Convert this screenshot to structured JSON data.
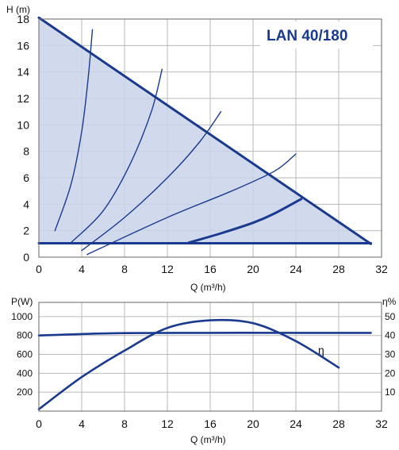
{
  "chart_data": [
    {
      "type": "line",
      "title": "LAN 40/180",
      "xlabel": "Q (m³/h)",
      "ylabel": "H (m)",
      "xlim": [
        0,
        32
      ],
      "ylim": [
        0,
        18
      ],
      "x_ticks": [
        "0",
        "4",
        "8",
        "12",
        "16",
        "20",
        "24",
        "28",
        "32"
      ],
      "y_ticks": [
        "0",
        "2",
        "4",
        "6",
        "8",
        "10",
        "12",
        "14",
        "16",
        "18"
      ],
      "grid": true,
      "colors": {
        "line": "#1a3a8f",
        "area": "#c9d3ea",
        "grid": "#b9b9b9",
        "title": "#1a3a8f"
      },
      "series": [
        {
          "role": "max-curve",
          "points": [
            [
              0,
              18.1
            ],
            [
              31,
              1.0
            ]
          ]
        },
        {
          "role": "min-line",
          "points": [
            [
              0,
              1.05
            ],
            [
              31,
              1.05
            ]
          ]
        },
        {
          "role": "operating-curve",
          "points": [
            [
              14,
              1.1
            ],
            [
              17,
              1.8
            ],
            [
              20,
              2.6
            ],
            [
              22,
              3.3
            ],
            [
              24.5,
              4.4
            ]
          ]
        },
        {
          "role": "system-curve",
          "points": [
            [
              1.5,
              2
            ],
            [
              3,
              5.5
            ],
            [
              4,
              9.5
            ],
            [
              4.6,
              13.5
            ],
            [
              5,
              17.2
            ]
          ]
        },
        {
          "role": "system-curve",
          "points": [
            [
              3,
              1.1
            ],
            [
              6,
              3.5
            ],
            [
              8.5,
              7
            ],
            [
              10.5,
              11
            ],
            [
              11.5,
              14.2
            ]
          ]
        },
        {
          "role": "system-curve",
          "points": [
            [
              4,
              0.5
            ],
            [
              8,
              3
            ],
            [
              12,
              6
            ],
            [
              15,
              8.7
            ],
            [
              17,
              11
            ]
          ]
        },
        {
          "role": "system-curve",
          "points": [
            [
              4.5,
              0.2
            ],
            [
              12,
              3
            ],
            [
              18,
              5
            ],
            [
              22,
              6.5
            ],
            [
              24,
              7.8
            ]
          ]
        }
      ]
    },
    {
      "type": "line",
      "title": "",
      "xlabel": "Q (m³/h)",
      "ylabel": "P(W)",
      "y2label": "η%",
      "xlim": [
        0,
        32
      ],
      "ylim": [
        0,
        1150
      ],
      "y2lim": [
        0,
        57.5
      ],
      "x_ticks": [
        "0",
        "4",
        "8",
        "12",
        "16",
        "20",
        "24",
        "28",
        "32"
      ],
      "y_ticks": [
        "200",
        "400",
        "600",
        "800",
        "1000"
      ],
      "y2_ticks": [
        "10",
        "20",
        "30",
        "40",
        "50"
      ],
      "grid": true,
      "colors": {
        "line": "#1a3a8f",
        "grid": "#b9b9b9"
      },
      "series": [
        {
          "role": "power",
          "axis": "left",
          "points": [
            [
              0,
              800
            ],
            [
              4,
              815
            ],
            [
              8,
              825
            ],
            [
              16,
              828
            ],
            [
              24,
              828
            ],
            [
              31,
              828
            ]
          ]
        },
        {
          "role": "efficiency",
          "axis": "right",
          "name": "η",
          "points": [
            [
              0,
              1
            ],
            [
              4,
              18
            ],
            [
              8,
              32
            ],
            [
              12,
              44
            ],
            [
              16,
              48
            ],
            [
              20,
              46.5
            ],
            [
              24,
              37
            ],
            [
              28,
              23
            ]
          ]
        }
      ]
    }
  ]
}
